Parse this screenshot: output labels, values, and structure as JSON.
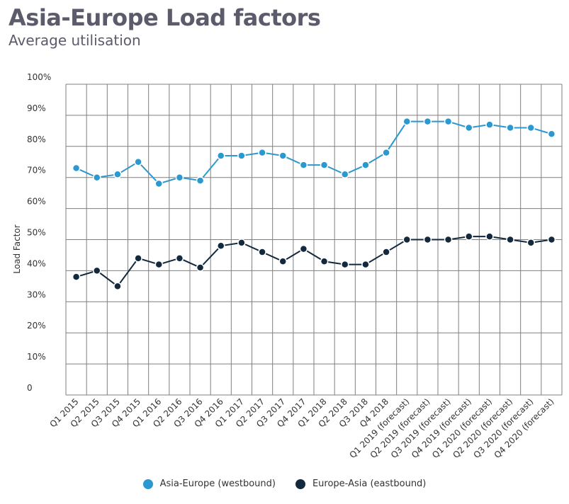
{
  "header": {
    "title": "Asia-Europe Load factors",
    "subtitle": "Average utilisation"
  },
  "colors": {
    "westbound": "#2b98cf",
    "eastbound": "#13293d",
    "grid": "#7f7f7f"
  },
  "chart_data": {
    "type": "line",
    "ylabel": "Load Factor",
    "ylim": [
      0,
      100
    ],
    "yticks": [
      0,
      10,
      20,
      30,
      40,
      50,
      60,
      70,
      80,
      90,
      100
    ],
    "ytick_labels": [
      "0",
      "10%",
      "20%",
      "30%",
      "40%",
      "50%",
      "60%",
      "70%",
      "80%",
      "90%",
      "100%"
    ],
    "grid": true,
    "legend_position": "bottom",
    "categories": [
      "Q1 2015",
      "Q2 2015",
      "Q3 2015",
      "Q4 2015",
      "Q1 2016",
      "Q2 2016",
      "Q3 2016",
      "Q4 2016",
      "Q1 2017",
      "Q2 2017",
      "Q3 2017",
      "Q4 2017",
      "Q1 2018",
      "Q2 2018",
      "Q3 2018",
      "Q4 2018",
      "Q1 2019 (forecast)",
      "Q2 2019 (forecast)",
      "Q3 2019 (forecast)",
      "Q4 2019 (forecast)",
      "Q1 2020 (forecast)",
      "Q2 2020 (forecast)",
      "Q3 2020 (forecast)",
      "Q4 2020 (forecast)"
    ],
    "series": [
      {
        "name": "Asia-Europe (westbound)",
        "color": "#2b98cf",
        "values": [
          73,
          70,
          71,
          75,
          68,
          70,
          69,
          77,
          77,
          78,
          77,
          74,
          74,
          71,
          74,
          78,
          88,
          88,
          88,
          86,
          87,
          86,
          86,
          84
        ]
      },
      {
        "name": "Europe-Asia (eastbound)",
        "color": "#13293d",
        "values": [
          38,
          40,
          35,
          44,
          42,
          44,
          41,
          48,
          49,
          46,
          43,
          47,
          43,
          42,
          42,
          46,
          50,
          50,
          50,
          51,
          51,
          50,
          49,
          50
        ]
      }
    ]
  }
}
